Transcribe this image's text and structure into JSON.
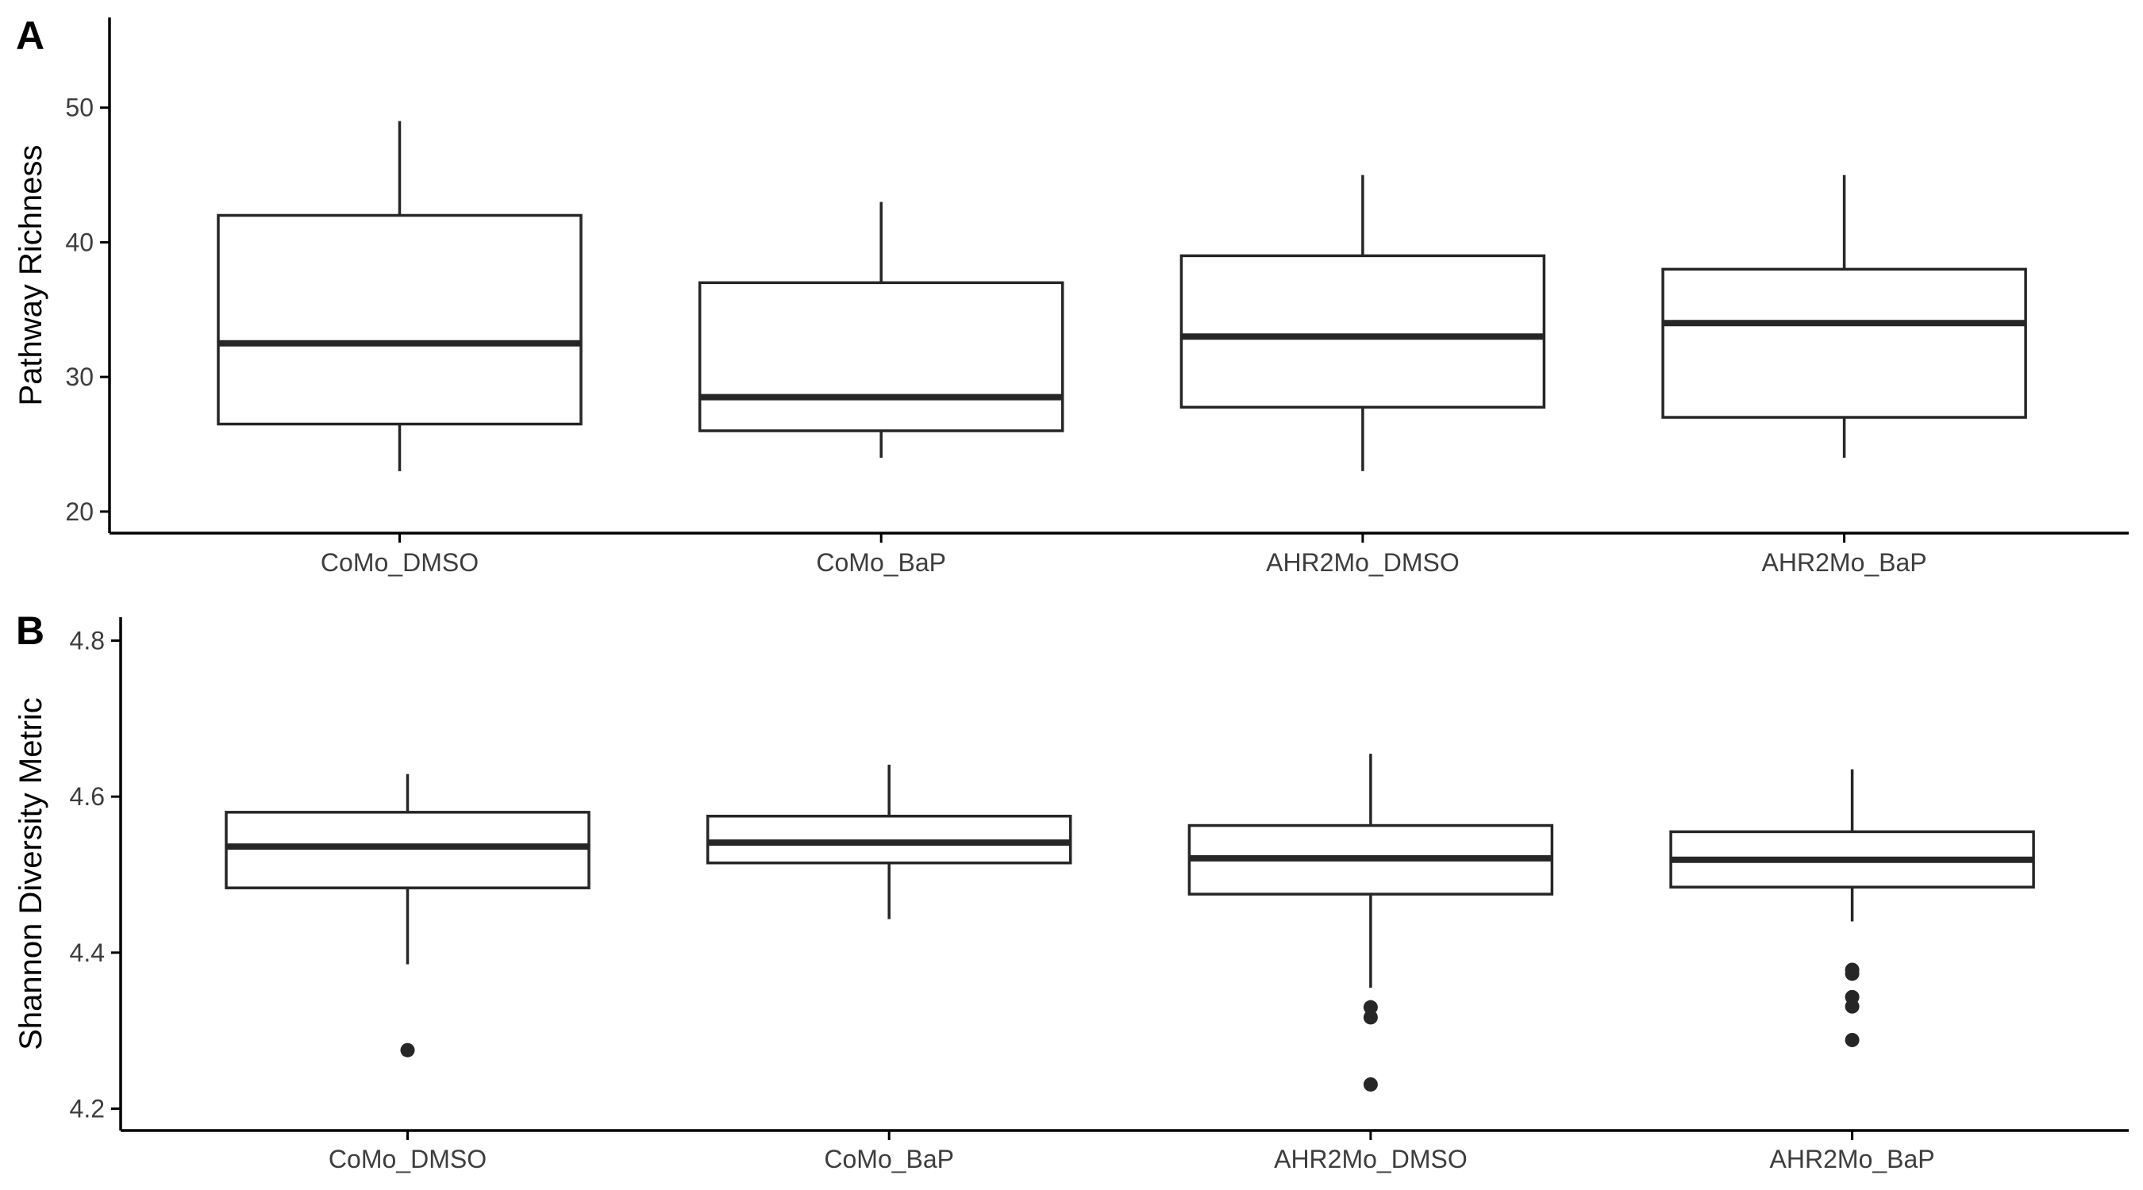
{
  "colors": {
    "box_line": "#262626",
    "outlier": "#262626",
    "axis": "#000000",
    "tick_text": "#3d3d3d",
    "box_fill": "#ffffff"
  },
  "chart_data": [
    {
      "type": "box",
      "panel_label": "A",
      "title": "",
      "xlabel": "",
      "ylabel": "Pathway Richness",
      "categories": [
        "CoMo_DMSO",
        "CoMo_BaP",
        "AHR2Mo_DMSO",
        "AHR2Mo_BaP"
      ],
      "ylim": [
        18.4,
        56.7
      ],
      "yticks": [
        20,
        30,
        40,
        50
      ],
      "grid": false,
      "legend": "none",
      "boxes": [
        {
          "category": "CoMo_DMSO",
          "whisker_low": 23,
          "q1": 26.5,
          "median": 32.5,
          "q3": 42,
          "whisker_high": 49,
          "outliers": []
        },
        {
          "category": "CoMo_BaP",
          "whisker_low": 24,
          "q1": 26,
          "median": 28.5,
          "q3": 37,
          "whisker_high": 43,
          "outliers": []
        },
        {
          "category": "AHR2Mo_DMSO",
          "whisker_low": 23,
          "q1": 27.75,
          "median": 33,
          "q3": 39,
          "whisker_high": 45,
          "outliers": []
        },
        {
          "category": "AHR2Mo_BaP",
          "whisker_low": 24,
          "q1": 27,
          "median": 34,
          "q3": 38,
          "whisker_high": 45,
          "outliers": []
        }
      ]
    },
    {
      "type": "box",
      "panel_label": "B",
      "title": "",
      "xlabel": "",
      "ylabel": "Shannon Diversity Metric",
      "categories": [
        "CoMo_DMSO",
        "CoMo_BaP",
        "AHR2Mo_DMSO",
        "AHR2Mo_BaP"
      ],
      "ylim": [
        4.172,
        4.83
      ],
      "yticks": [
        4.2,
        4.4,
        4.6,
        4.8
      ],
      "grid": false,
      "legend": "none",
      "boxes": [
        {
          "category": "CoMo_DMSO",
          "whisker_low": 4.385,
          "q1": 4.483,
          "median": 4.536,
          "q3": 4.58,
          "whisker_high": 4.629,
          "outliers": [
            4.275
          ]
        },
        {
          "category": "CoMo_BaP",
          "whisker_low": 4.443,
          "q1": 4.515,
          "median": 4.541,
          "q3": 4.575,
          "whisker_high": 4.641,
          "outliers": []
        },
        {
          "category": "AHR2Mo_DMSO",
          "whisker_low": 4.355,
          "q1": 4.475,
          "median": 4.521,
          "q3": 4.563,
          "whisker_high": 4.655,
          "outliers": [
            4.33,
            4.317,
            4.231
          ]
        },
        {
          "category": "AHR2Mo_BaP",
          "whisker_low": 4.44,
          "q1": 4.484,
          "median": 4.519,
          "q3": 4.555,
          "whisker_high": 4.635,
          "outliers": [
            4.378,
            4.373,
            4.343,
            4.331,
            4.288
          ]
        }
      ]
    }
  ]
}
